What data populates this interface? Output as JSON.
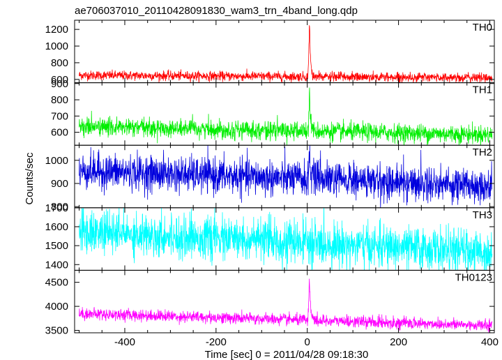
{
  "chart_data": {
    "type": "line",
    "title": "ae706037010_20110428091830_wam3_trn_4band_long.qdp",
    "xlabel": "Time [sec] 0 = 2011/04/28 09:18:30",
    "ylabel": "Counts/sec",
    "xlim": [
      -510,
      410
    ],
    "x_ticks": [
      -400,
      -200,
      0,
      200,
      400
    ],
    "grid": false,
    "series": [
      {
        "name": "TH0",
        "color": "#ff0000",
        "ylim": [
          560,
          1310
        ],
        "y_ticks": [
          600,
          800,
          1000,
          1200
        ],
        "baseline": 650,
        "trend": -30,
        "noise": 28,
        "peak": 1300,
        "peak_time": 5
      },
      {
        "name": "TH1",
        "color": "#00ee00",
        "ylim": [
          520,
          905
        ],
        "y_ticks": [
          600,
          700,
          800,
          900
        ],
        "baseline": 635,
        "trend": -50,
        "noise": 28,
        "peak": 900,
        "peak_time": 5
      },
      {
        "name": "TH2",
        "color": "#0000dd",
        "ylim": [
          795,
          1065
        ],
        "y_ticks": [
          800,
          900,
          1000
        ],
        "baseline": 955,
        "trend": -65,
        "noise": 38,
        "peak": 1060,
        "peak_time": 5
      },
      {
        "name": "TH3",
        "color": "#00ffff",
        "ylim": [
          1370,
          1700
        ],
        "y_ticks": [
          1400,
          1500,
          1600,
          1700
        ],
        "baseline": 1575,
        "trend": -110,
        "noise": 55,
        "peak": 1600,
        "peak_time": 5
      },
      {
        "name": "TH0123",
        "color": "#ff00ff",
        "ylim": [
          3450,
          4750
        ],
        "y_ticks": [
          3500,
          4000,
          4500
        ],
        "baseline": 3850,
        "trend": -250,
        "noise": 60,
        "peak": 4700,
        "peak_time": 5
      }
    ]
  }
}
